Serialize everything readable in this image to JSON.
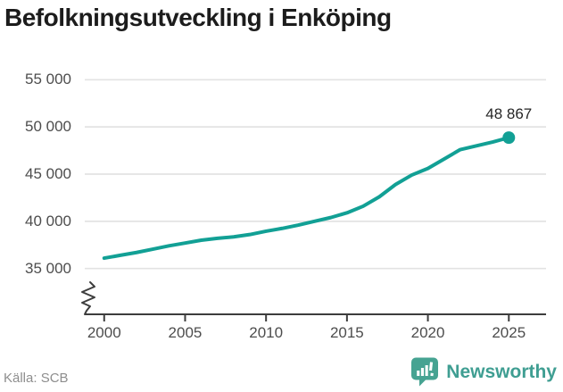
{
  "page": {
    "title": "Befolkningsutveckling i Enköping",
    "source": "Källa: SCB"
  },
  "branding": {
    "name": "Newsworthy",
    "icon": "newsworthy-speech-bubble-chart-icon"
  },
  "colors": {
    "line": "#12a095",
    "dot": "#12a095",
    "grid": "#e3e3e3",
    "axis": "#3d3d3d",
    "title_text": "#1c1c1c",
    "tick_text": "#4d4d4d",
    "source_text": "#8e8e8e",
    "brand_teal": "#3f9e92",
    "background": "#ffffff"
  },
  "chart_data": {
    "type": "line",
    "title": "Befolkningsutveckling i Enköping",
    "x": [
      2000,
      2001,
      2002,
      2003,
      2004,
      2005,
      2006,
      2007,
      2008,
      2009,
      2010,
      2011,
      2012,
      2013,
      2014,
      2015,
      2016,
      2017,
      2018,
      2019,
      2020,
      2021,
      2022,
      2023,
      2024,
      2025
    ],
    "values": [
      36100,
      36400,
      36700,
      37050,
      37400,
      37700,
      38000,
      38200,
      38350,
      38600,
      38950,
      39250,
      39600,
      40000,
      40400,
      40900,
      41600,
      42600,
      43900,
      44900,
      45600,
      46600,
      47600,
      48000,
      48400,
      48867
    ],
    "annotation": {
      "text": "48 867",
      "x": 2025,
      "y": 48867
    },
    "xticks": [
      2000,
      2005,
      2010,
      2015,
      2020,
      2025
    ],
    "xtick_labels": [
      "2000",
      "2005",
      "2010",
      "2015",
      "2020",
      "2025"
    ],
    "yticks": [
      35000,
      40000,
      45000,
      50000,
      55000
    ],
    "ytick_labels": [
      "35 000",
      "40 000",
      "45 000",
      "50 000",
      "55 000"
    ],
    "xlim": [
      1998.8,
      2027.3
    ],
    "ylim": [
      35000,
      55000
    ],
    "y_axis_break": true,
    "grid": "horizontal-only",
    "legend": "none",
    "xlabel": "",
    "ylabel": ""
  }
}
